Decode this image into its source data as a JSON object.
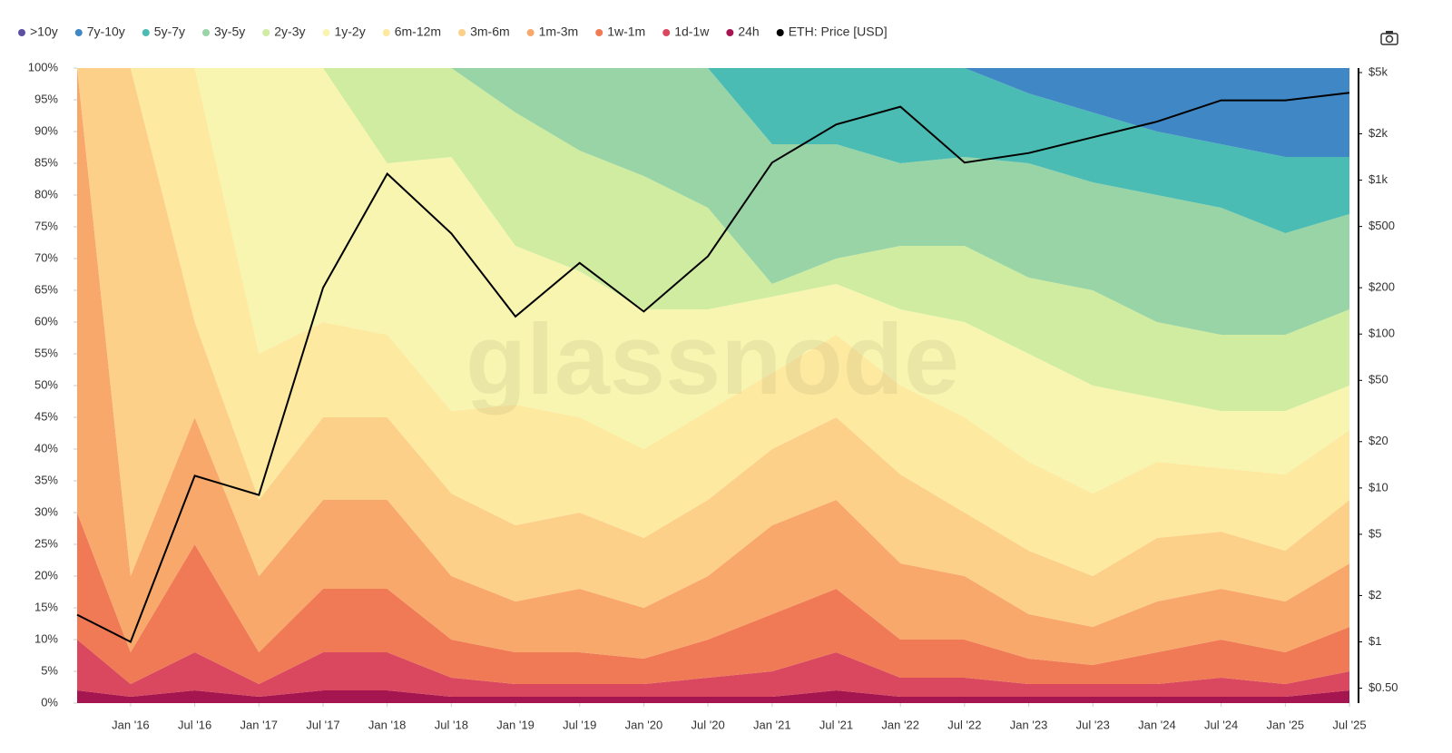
{
  "chart_data": {
    "type": "stacked-area",
    "watermark": "glassnode",
    "x": [
      "2015-08",
      "2016-01",
      "2016-07",
      "2017-01",
      "2017-07",
      "2018-01",
      "2018-07",
      "2019-01",
      "2019-07",
      "2020-01",
      "2020-07",
      "2021-01",
      "2021-07",
      "2022-01",
      "2022-07",
      "2023-01",
      "2023-07",
      "2024-01",
      "2024-07",
      "2025-01",
      "2025-07"
    ],
    "xlim": [
      "2015-08",
      "2025-07"
    ],
    "xticks": [
      {
        "value": "2016-01",
        "label": "Jan '16"
      },
      {
        "value": "2016-07",
        "label": "Jul '16"
      },
      {
        "value": "2017-01",
        "label": "Jan '17"
      },
      {
        "value": "2017-07",
        "label": "Jul '17"
      },
      {
        "value": "2018-01",
        "label": "Jan '18"
      },
      {
        "value": "2018-07",
        "label": "Jul '18"
      },
      {
        "value": "2019-01",
        "label": "Jan '19"
      },
      {
        "value": "2019-07",
        "label": "Jul '19"
      },
      {
        "value": "2020-01",
        "label": "Jan '20"
      },
      {
        "value": "2020-07",
        "label": "Jul '20"
      },
      {
        "value": "2021-01",
        "label": "Jan '21"
      },
      {
        "value": "2021-07",
        "label": "Jul '21"
      },
      {
        "value": "2022-01",
        "label": "Jan '22"
      },
      {
        "value": "2022-07",
        "label": "Jul '22"
      },
      {
        "value": "2023-01",
        "label": "Jan '23"
      },
      {
        "value": "2023-07",
        "label": "Jul '23"
      },
      {
        "value": "2024-01",
        "label": "Jan '24"
      },
      {
        "value": "2024-07",
        "label": "Jul '24"
      },
      {
        "value": "2025-01",
        "label": "Jan '25"
      },
      {
        "value": "2025-07",
        "label": "Jul '25"
      }
    ],
    "ylim": [
      0,
      100
    ],
    "yticks": [
      {
        "value": 0,
        "label": "0%"
      },
      {
        "value": 5,
        "label": "5%"
      },
      {
        "value": 10,
        "label": "10%"
      },
      {
        "value": 15,
        "label": "15%"
      },
      {
        "value": 20,
        "label": "20%"
      },
      {
        "value": 25,
        "label": "25%"
      },
      {
        "value": 30,
        "label": "30%"
      },
      {
        "value": 35,
        "label": "35%"
      },
      {
        "value": 40,
        "label": "40%"
      },
      {
        "value": 45,
        "label": "45%"
      },
      {
        "value": 50,
        "label": "50%"
      },
      {
        "value": 55,
        "label": "55%"
      },
      {
        "value": 60,
        "label": "60%"
      },
      {
        "value": 65,
        "label": "65%"
      },
      {
        "value": 70,
        "label": "70%"
      },
      {
        "value": 75,
        "label": "75%"
      },
      {
        "value": 80,
        "label": "80%"
      },
      {
        "value": 85,
        "label": "85%"
      },
      {
        "value": 90,
        "label": "90%"
      },
      {
        "value": 95,
        "label": "95%"
      },
      {
        "value": 100,
        "label": "100%"
      }
    ],
    "y2_log": true,
    "y2lim": [
      0.4,
      5350
    ],
    "y2ticks": [
      {
        "value": 0.5,
        "label": "$0.50"
      },
      {
        "value": 1,
        "label": "$1"
      },
      {
        "value": 2,
        "label": "$2"
      },
      {
        "value": 5,
        "label": "$5"
      },
      {
        "value": 10,
        "label": "$10"
      },
      {
        "value": 20,
        "label": "$20"
      },
      {
        "value": 50,
        "label": "$50"
      },
      {
        "value": 100,
        "label": "$100"
      },
      {
        "value": 200,
        "label": "$200"
      },
      {
        "value": 500,
        "label": "$500"
      },
      {
        "value": 1000,
        "label": "$1k"
      },
      {
        "value": 2000,
        "label": "$2k"
      },
      {
        "value": 5000,
        "label": "$5k"
      }
    ],
    "series": [
      {
        "name": ">10y",
        "color": "#5e4fa2",
        "values": [
          0,
          0,
          0,
          0,
          0,
          0,
          0,
          0,
          0,
          0,
          0,
          0,
          0,
          0,
          0,
          0,
          0,
          0,
          0,
          0,
          0
        ]
      },
      {
        "name": "7y-10y",
        "color": "#3f88c5",
        "values": [
          0,
          0,
          0,
          0,
          0,
          0,
          0,
          0,
          0,
          0,
          0,
          0,
          0,
          0,
          0,
          4,
          7,
          10,
          12,
          14,
          14
        ]
      },
      {
        "name": "5y-7y",
        "color": "#4bbcb3",
        "values": [
          0,
          0,
          0,
          0,
          0,
          0,
          0,
          0,
          0,
          0,
          0,
          12,
          12,
          15,
          14,
          11,
          11,
          10,
          10,
          12,
          9
        ]
      },
      {
        "name": "3y-5y",
        "color": "#98d4a6",
        "values": [
          0,
          0,
          0,
          0,
          0,
          0,
          0,
          7,
          13,
          17,
          22,
          22,
          18,
          13,
          14,
          18,
          17,
          20,
          20,
          16,
          15
        ]
      },
      {
        "name": "2y-3y",
        "color": "#cfeca0",
        "values": [
          0,
          0,
          0,
          0,
          0,
          15,
          14,
          21,
          19,
          21,
          16,
          2,
          4,
          10,
          12,
          12,
          15,
          12,
          12,
          12,
          12
        ]
      },
      {
        "name": "1y-2y",
        "color": "#f8f5b0",
        "values": [
          0,
          0,
          0,
          45,
          40,
          27,
          40,
          25,
          23,
          22,
          16,
          12,
          8,
          12,
          15,
          17,
          17,
          10,
          9,
          10,
          7
        ]
      },
      {
        "name": "6m-12m",
        "color": "#fde9a0",
        "values": [
          0,
          0,
          40,
          23,
          15,
          13,
          13,
          19,
          15,
          14,
          14,
          12,
          13,
          14,
          15,
          14,
          13,
          12,
          10,
          12,
          11
        ]
      },
      {
        "name": "3m-6m",
        "color": "#fdd089",
        "values": [
          0,
          80,
          15,
          12,
          13,
          13,
          13,
          12,
          12,
          11,
          12,
          12,
          13,
          14,
          10,
          10,
          8,
          10,
          9,
          8,
          10
        ]
      },
      {
        "name": "1m-3m",
        "color": "#f9a86c",
        "values": [
          70,
          12,
          20,
          12,
          14,
          14,
          10,
          8,
          10,
          8,
          10,
          14,
          14,
          12,
          10,
          7,
          6,
          8,
          8,
          8,
          10
        ]
      },
      {
        "name": "1w-1m",
        "color": "#f07a55",
        "values": [
          20,
          5,
          17,
          5,
          10,
          10,
          6,
          5,
          5,
          4,
          6,
          9,
          10,
          6,
          6,
          4,
          3,
          5,
          6,
          5,
          7
        ]
      },
      {
        "name": "1d-1w",
        "color": "#d9485f",
        "values": [
          8,
          2,
          6,
          2,
          6,
          6,
          3,
          2,
          2,
          2,
          3,
          4,
          6,
          3,
          3,
          2,
          2,
          2,
          3,
          2,
          3
        ]
      },
      {
        "name": "24h",
        "color": "#a51650",
        "values": [
          2,
          1,
          2,
          1,
          2,
          2,
          1,
          1,
          1,
          1,
          1,
          1,
          2,
          1,
          1,
          1,
          1,
          1,
          1,
          1,
          2
        ]
      },
      {
        "name": "ETH: Price [USD]",
        "color": "#000000",
        "axis": "y2",
        "values": [
          1.5,
          1,
          12,
          9,
          200,
          1100,
          450,
          130,
          290,
          140,
          320,
          1300,
          2300,
          3000,
          1300,
          1500,
          1900,
          2400,
          3300,
          3300,
          3700
        ]
      }
    ]
  }
}
